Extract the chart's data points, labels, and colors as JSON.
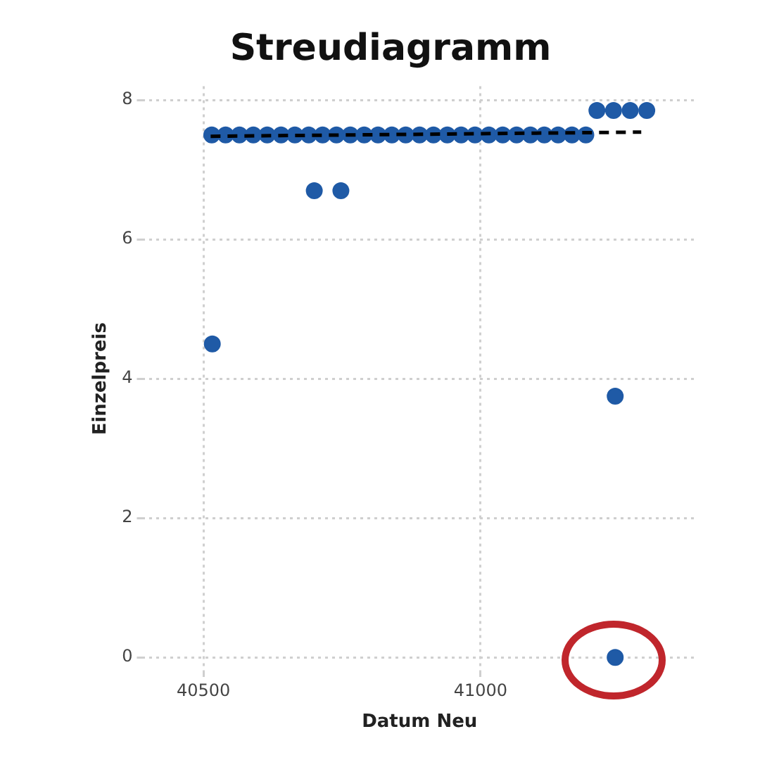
{
  "chart_data": {
    "type": "scatter",
    "title": "Streudiagramm",
    "xlabel": "Datum Neu",
    "ylabel": "Einzelpreis",
    "xlim": [
      40390,
      41390
    ],
    "xticks": [
      40500,
      41000
    ],
    "ylim": [
      -0.2,
      8.2
    ],
    "yticks": [
      0,
      2,
      4,
      6,
      8
    ],
    "grid": true,
    "legend": false,
    "marker": "circle",
    "series": [
      {
        "color": "#1f5aa6",
        "x": [
          40516,
          40700,
          40748,
          41243,
          41243,
          40515,
          40540,
          40565,
          40590,
          40615,
          40640,
          40665,
          40690,
          40715,
          40740,
          40765,
          40790,
          40815,
          40840,
          40865,
          40890,
          40915,
          40940,
          40965,
          40990,
          41015,
          41040,
          41065,
          41090,
          41115,
          41140,
          41165,
          41190,
          41210,
          41240,
          41270,
          41300
        ],
        "values": [
          4.5,
          6.7,
          6.7,
          3.75,
          0,
          7.5,
          7.5,
          7.5,
          7.5,
          7.5,
          7.5,
          7.5,
          7.5,
          7.5,
          7.5,
          7.5,
          7.5,
          7.5,
          7.5,
          7.5,
          7.5,
          7.5,
          7.5,
          7.5,
          7.5,
          7.5,
          7.5,
          7.5,
          7.5,
          7.5,
          7.5,
          7.5,
          7.5,
          7.85,
          7.85,
          7.85,
          7.85
        ]
      },
      {
        "type": "line",
        "color": "#000000",
        "line_style": "dashed",
        "marker": "none",
        "x": [
          40513,
          41290
        ],
        "values": [
          7.48,
          7.54
        ]
      }
    ]
  }
}
